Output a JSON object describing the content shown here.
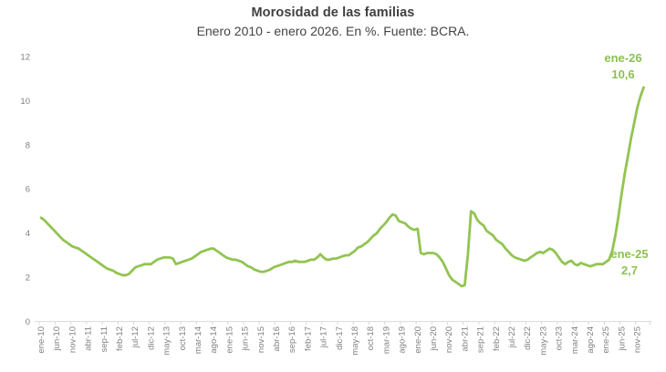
{
  "header": {
    "title": "Morosidad de las familias",
    "subtitle": "Enero 2010 - enero 2026. En %. Fuente: BCRA."
  },
  "colors": {
    "line": "#92c452",
    "axis_line": "#d9d9d9",
    "tick_text": "#7f7f7f",
    "title_text": "#3f3f3f",
    "annotation_text": "#8cc152",
    "background": "#ffffff"
  },
  "chart_data": {
    "type": "line",
    "title": "Morosidad de las familias",
    "subtitle": "Enero 2010 - enero 2026. En %. Fuente: BCRA.",
    "unit": "%",
    "grid": false,
    "legend": "none",
    "ylim": [
      0,
      12
    ],
    "y_ticks": [
      0,
      2,
      4,
      6,
      8,
      10,
      12
    ],
    "x_start": "ene-10",
    "x_end": "ene-26",
    "x_tick_interval_months": 5,
    "x_tick_labels": [
      "ene-10",
      "jun-10",
      "nov-10",
      "abr-11",
      "sep-11",
      "feb-12",
      "jul-12",
      "dic-12",
      "may-13",
      "oct-13",
      "mar-14",
      "ago-14",
      "ene-15",
      "jun-15",
      "nov-15",
      "abr-16",
      "sep-16",
      "feb-17",
      "jul-17",
      "dic-17",
      "may-18",
      "oct-18",
      "mar-19",
      "ago-19",
      "ene-20",
      "jun-20",
      "nov-20",
      "abr-21",
      "sep-21",
      "feb-22",
      "jul-22",
      "dic-22",
      "may-23",
      "oct-23",
      "mar-24",
      "ago-24",
      "ene-25",
      "jun-25",
      "nov-25"
    ],
    "series": [
      {
        "name": "Morosidad de las familias (%)",
        "start_month": "ene-10",
        "frequency": "monthly",
        "values": [
          4.7,
          4.6,
          4.45,
          4.3,
          4.15,
          4.0,
          3.85,
          3.7,
          3.6,
          3.5,
          3.4,
          3.35,
          3.3,
          3.2,
          3.1,
          3.0,
          2.9,
          2.8,
          2.7,
          2.6,
          2.5,
          2.4,
          2.35,
          2.3,
          2.2,
          2.15,
          2.1,
          2.1,
          2.15,
          2.3,
          2.45,
          2.5,
          2.55,
          2.6,
          2.6,
          2.6,
          2.7,
          2.8,
          2.85,
          2.9,
          2.9,
          2.9,
          2.85,
          2.6,
          2.65,
          2.7,
          2.75,
          2.8,
          2.85,
          2.95,
          3.05,
          3.15,
          3.2,
          3.25,
          3.3,
          3.3,
          3.2,
          3.1,
          3.0,
          2.9,
          2.85,
          2.8,
          2.8,
          2.75,
          2.7,
          2.6,
          2.5,
          2.45,
          2.35,
          2.3,
          2.25,
          2.25,
          2.3,
          2.35,
          2.45,
          2.5,
          2.55,
          2.6,
          2.65,
          2.7,
          2.7,
          2.75,
          2.7,
          2.7,
          2.7,
          2.75,
          2.8,
          2.8,
          2.9,
          3.05,
          2.9,
          2.8,
          2.8,
          2.85,
          2.85,
          2.9,
          2.95,
          3.0,
          3.0,
          3.1,
          3.2,
          3.35,
          3.4,
          3.5,
          3.6,
          3.75,
          3.9,
          4.0,
          4.2,
          4.35,
          4.5,
          4.7,
          4.85,
          4.8,
          4.55,
          4.5,
          4.45,
          4.3,
          4.2,
          4.15,
          4.2,
          3.1,
          3.05,
          3.1,
          3.1,
          3.1,
          3.05,
          2.9,
          2.7,
          2.4,
          2.1,
          1.9,
          1.8,
          1.7,
          1.6,
          1.65,
          3.0,
          5.0,
          4.9,
          4.6,
          4.45,
          4.35,
          4.1,
          4.0,
          3.9,
          3.7,
          3.6,
          3.5,
          3.3,
          3.15,
          3.0,
          2.9,
          2.85,
          2.8,
          2.75,
          2.8,
          2.9,
          3.0,
          3.1,
          3.15,
          3.1,
          3.2,
          3.3,
          3.25,
          3.1,
          2.9,
          2.7,
          2.6,
          2.7,
          2.75,
          2.6,
          2.55,
          2.65,
          2.6,
          2.55,
          2.5,
          2.55,
          2.6,
          2.6,
          2.6,
          2.7,
          2.8,
          3.2,
          3.9,
          4.8,
          5.8,
          6.7,
          7.5,
          8.3,
          9.0,
          9.7,
          10.2,
          10.6
        ]
      }
    ],
    "annotations": [
      {
        "label": "ene-26",
        "value": "10,6"
      },
      {
        "label": "ene-25",
        "value": "2,7"
      }
    ]
  }
}
